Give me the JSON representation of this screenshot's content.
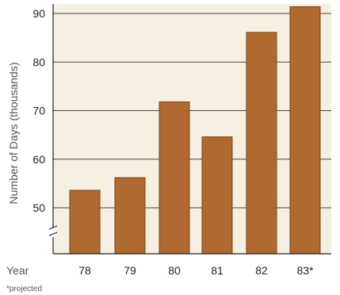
{
  "chart_data": {
    "type": "bar",
    "categories": [
      "78",
      "79",
      "80",
      "81",
      "82",
      "83*"
    ],
    "values": [
      53.6,
      56.2,
      71.8,
      64.6,
      86.1,
      91.4
    ],
    "ylabel": "Number of Days (thousands)",
    "xlabel": "Year",
    "yticks": [
      "50",
      "60",
      "70",
      "80",
      "90"
    ],
    "ylim": [
      40,
      90
    ],
    "axis_break": true,
    "grid": true,
    "footnote": "*projected",
    "bar_color": "#b0692e",
    "bar_edge_color": "#7a4315",
    "background_color": "#f6f0e3",
    "grid_color": "#444444",
    "text_color": "#555555",
    "tick_label_color": "#222222"
  }
}
